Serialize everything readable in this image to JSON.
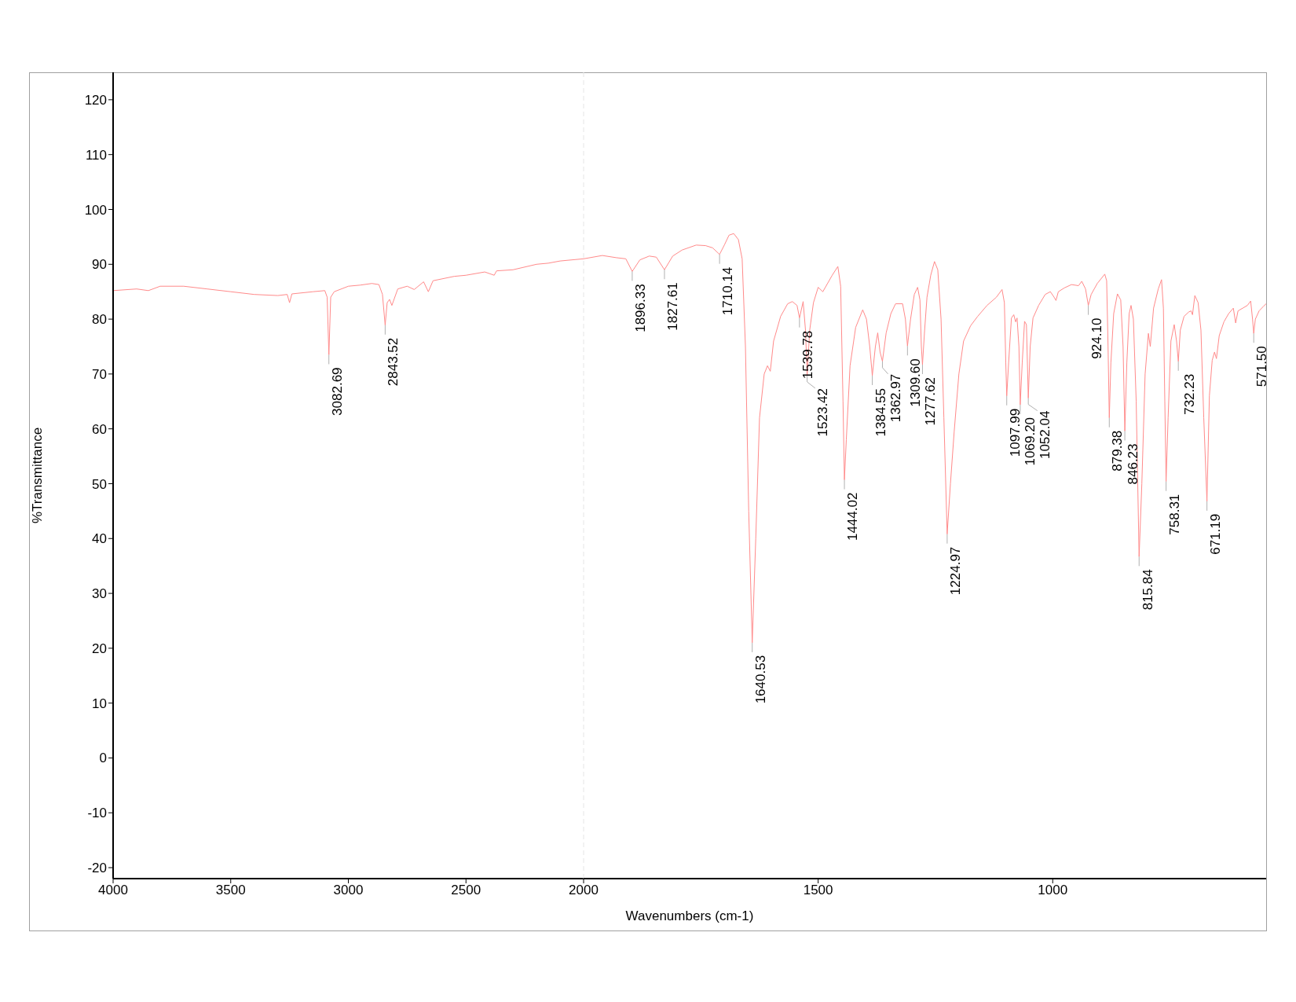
{
  "chart_data": [
    {
      "type": "line",
      "ylabel": "%Transmittance",
      "xlim": [
        4000,
        2000
      ],
      "xticks": [
        4000,
        3500,
        3000,
        2500,
        2000
      ],
      "ylim": [
        -22,
        125
      ],
      "yticks": [
        -20,
        -10,
        0,
        10,
        20,
        30,
        40,
        50,
        60,
        70,
        80,
        90,
        100,
        110,
        120
      ],
      "marker": "none",
      "line_style": "solid",
      "x": [
        4000,
        3900,
        3850,
        3800,
        3700,
        3600,
        3500,
        3400,
        3300,
        3260,
        3250,
        3240,
        3150,
        3100,
        3090,
        3082.69,
        3075,
        3060,
        3000,
        2950,
        2900,
        2870,
        2855,
        2843.52,
        2835,
        2825,
        2815,
        2790,
        2750,
        2720,
        2680,
        2660,
        2640,
        2550,
        2500,
        2420,
        2380,
        2370,
        2300,
        2200,
        2150,
        2100,
        2050,
        2000
      ],
      "series": [
        {
          "color": "#ff8a8a",
          "values": [
            85.2,
            85.5,
            85.2,
            86,
            86,
            85.5,
            85,
            84.5,
            84.3,
            84.5,
            83,
            84.6,
            85,
            85.2,
            84,
            73.5,
            84,
            85,
            86,
            86.2,
            86.5,
            86.3,
            84.5,
            78.9,
            83,
            83.6,
            82.5,
            85.5,
            86,
            85.4,
            86.8,
            85,
            87,
            87.8,
            88,
            88.6,
            88,
            88.8,
            89,
            90,
            90.2,
            90.6,
            90.8,
            91
          ]
        }
      ],
      "annotations": [
        {
          "text": "3082.69",
          "x": 3082.69,
          "y": 73.5
        },
        {
          "text": "2843.52",
          "x": 2843.52,
          "y": 78.9
        }
      ]
    },
    {
      "type": "line",
      "xlabel": "Wavenumbers (cm-1)",
      "xlim": [
        2000,
        545
      ],
      "xticks": [
        1500,
        1000
      ],
      "ylim": [
        -22,
        125
      ],
      "tick_labels": "x",
      "marker": "none",
      "line_style": "solid",
      "ref_lines": [
        {
          "axis": "x",
          "value": 2000,
          "color": "#e6e6e6",
          "line_style": "dashed"
        }
      ],
      "x": [
        2000,
        1960,
        1930,
        1910,
        1896.33,
        1880,
        1860,
        1845,
        1827.61,
        1810,
        1790,
        1760,
        1740,
        1725,
        1710.14,
        1700,
        1690,
        1680,
        1670,
        1662,
        1655,
        1648,
        1640.53,
        1633,
        1625,
        1615,
        1608,
        1602,
        1595,
        1580,
        1565,
        1555,
        1545,
        1539.78,
        1532,
        1527,
        1523.42,
        1518,
        1510,
        1500,
        1490,
        1470,
        1458,
        1452,
        1447,
        1444.02,
        1440,
        1432,
        1420,
        1405,
        1397,
        1390,
        1384.55,
        1378,
        1373,
        1368,
        1362.97,
        1355,
        1345,
        1335,
        1320,
        1314,
        1309.6,
        1303,
        1295,
        1288,
        1283,
        1280,
        1277.62,
        1273,
        1268,
        1260,
        1252,
        1245,
        1238,
        1232,
        1224.97,
        1218,
        1210,
        1200,
        1190,
        1175,
        1160,
        1140,
        1120,
        1108,
        1103,
        1100,
        1097.99,
        1094,
        1088,
        1083,
        1079,
        1076,
        1072,
        1069.2,
        1065,
        1060,
        1056,
        1052.04,
        1048,
        1042,
        1030,
        1016,
        1005,
        997,
        993,
        988,
        975,
        960,
        945,
        938,
        930,
        924.1,
        918,
        905,
        889,
        885,
        882,
        879.38,
        876,
        870,
        862,
        855,
        850,
        846.23,
        842,
        837,
        833,
        828,
        822,
        815.84,
        810,
        803,
        796,
        792,
        785,
        775,
        768,
        764,
        761,
        758.31,
        754,
        748,
        741,
        736,
        732.23,
        728,
        720,
        710,
        705,
        702,
        697,
        690,
        684,
        678,
        671.19,
        666,
        660,
        655,
        651,
        645,
        635,
        625,
        615,
        610,
        605,
        595,
        585,
        578,
        574,
        571.5,
        568,
        560,
        550,
        545
      ],
      "series": [
        {
          "color": "#ff8a8a",
          "values": [
            91,
            91.6,
            91.2,
            91,
            88.7,
            90.8,
            91.5,
            91.3,
            89,
            91.5,
            92.6,
            93.5,
            93.4,
            93,
            91.8,
            93.5,
            95.3,
            95.6,
            94.5,
            91,
            75,
            45,
            21,
            40,
            62,
            70,
            71.5,
            70.5,
            76,
            80.5,
            82.8,
            83.2,
            82.5,
            80.2,
            83.2,
            78,
            69.7,
            78,
            83,
            85.8,
            85,
            88,
            89.6,
            86,
            65,
            50.7,
            58,
            71.5,
            78.5,
            81.7,
            80,
            75,
            69.7,
            75,
            77.5,
            74,
            72.3,
            77.5,
            81,
            82.8,
            82.8,
            80,
            75.1,
            80,
            84.5,
            85.8,
            83.5,
            75,
            71.7,
            78,
            84,
            88,
            90.5,
            89,
            80,
            62,
            40.8,
            50,
            59.5,
            70,
            76,
            78.8,
            80.5,
            82.5,
            84,
            85.4,
            83,
            72,
            66,
            72,
            80.2,
            80.8,
            79.5,
            80.2,
            75,
            64.4,
            72,
            79.6,
            79,
            65.6,
            75,
            80.2,
            82.5,
            84.5,
            85,
            84,
            83.4,
            85,
            85.7,
            86.3,
            86.1,
            86.9,
            85.5,
            82.5,
            84.5,
            86.5,
            88.2,
            87,
            75,
            62,
            72,
            81,
            84.6,
            83.5,
            75,
            59.6,
            72,
            81,
            82.5,
            80,
            65,
            36.7,
            50,
            70,
            77.4,
            75,
            82,
            85.5,
            87.2,
            82,
            65,
            50.4,
            62,
            76,
            79,
            76,
            72.3,
            78,
            80.5,
            81.3,
            81.5,
            80.8,
            84.3,
            83,
            78,
            62,
            46.8,
            66,
            72.5,
            74,
            72.8,
            77,
            79.5,
            81,
            82,
            79.3,
            81.5,
            82,
            82.5,
            83.3,
            80,
            77.4,
            80,
            81.5,
            82.4,
            82.8
          ]
        }
      ],
      "annotations": [
        {
          "text": "1896.33",
          "x": 1896.33,
          "y": 88.7
        },
        {
          "text": "1827.61",
          "x": 1827.61,
          "y": 89
        },
        {
          "text": "1710.14",
          "x": 1710.14,
          "y": 91.8
        },
        {
          "text": "1640.53",
          "x": 1640.53,
          "y": 21
        },
        {
          "text": "1539.78",
          "x": 1539.78,
          "y": 80.2
        },
        {
          "text": "1523.42",
          "x": 1523.42,
          "y": 69.7
        },
        {
          "text": "1444.02",
          "x": 1444.02,
          "y": 50.7
        },
        {
          "text": "1384.55",
          "x": 1384.55,
          "y": 69.7
        },
        {
          "text": "1362.97",
          "x": 1362.97,
          "y": 72.3
        },
        {
          "text": "1309.60",
          "x": 1309.6,
          "y": 75.1
        },
        {
          "text": "1277.62",
          "x": 1277.62,
          "y": 71.7
        },
        {
          "text": "1224.97",
          "x": 1224.97,
          "y": 40.8
        },
        {
          "text": "1097.99",
          "x": 1097.99,
          "y": 66
        },
        {
          "text": "1069.20",
          "x": 1069.2,
          "y": 64.4
        },
        {
          "text": "1052.04",
          "x": 1052.04,
          "y": 65.6
        },
        {
          "text": "924.10",
          "x": 924.1,
          "y": 82.5
        },
        {
          "text": "879.38",
          "x": 879.38,
          "y": 62
        },
        {
          "text": "846.23",
          "x": 846.23,
          "y": 59.6
        },
        {
          "text": "815.84",
          "x": 815.84,
          "y": 36.7
        },
        {
          "text": "758.31",
          "x": 758.31,
          "y": 50.4
        },
        {
          "text": "732.23",
          "x": 732.23,
          "y": 72.3
        },
        {
          "text": "671.19",
          "x": 671.19,
          "y": 46.8
        },
        {
          "text": "571.50",
          "x": 571.5,
          "y": 77.4
        }
      ]
    }
  ]
}
